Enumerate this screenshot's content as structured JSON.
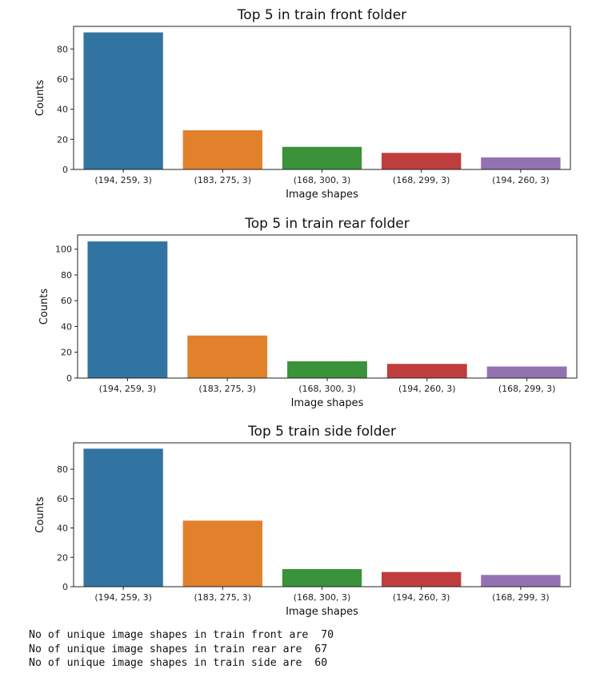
{
  "chart_data": [
    {
      "type": "bar",
      "title": "Top 5 in train front folder",
      "xlabel": "Image shapes",
      "ylabel": "Counts",
      "categories": [
        "(194, 259, 3)",
        "(183, 275, 3)",
        "(168, 300, 3)",
        "(168, 299, 3)",
        "(194, 260, 3)"
      ],
      "values": [
        91,
        26,
        15,
        11,
        8
      ],
      "colors": [
        "#3274a1",
        "#e1812c",
        "#3a923a",
        "#c03d3e",
        "#9372b2"
      ],
      "yticks": [
        0,
        20,
        40,
        60,
        80
      ],
      "ylim": [
        0,
        95
      ],
      "grid": false
    },
    {
      "type": "bar",
      "title": "Top 5 in train rear folder",
      "xlabel": "Image shapes",
      "ylabel": "Counts",
      "categories": [
        "(194, 259, 3)",
        "(183, 275, 3)",
        "(168, 300, 3)",
        "(194, 260, 3)",
        "(168, 299, 3)"
      ],
      "values": [
        106,
        33,
        13,
        11,
        9
      ],
      "colors": [
        "#3274a1",
        "#e1812c",
        "#3a923a",
        "#c03d3e",
        "#9372b2"
      ],
      "yticks": [
        0,
        20,
        40,
        60,
        80,
        100
      ],
      "ylim": [
        0,
        111
      ],
      "grid": false
    },
    {
      "type": "bar",
      "title": "Top 5 train side folder",
      "xlabel": "Image shapes",
      "ylabel": "Counts",
      "categories": [
        "(194, 259, 3)",
        "(183, 275, 3)",
        "(168, 300, 3)",
        "(194, 260, 3)",
        "(168, 299, 3)"
      ],
      "values": [
        94,
        45,
        12,
        10,
        8
      ],
      "colors": [
        "#3274a1",
        "#e1812c",
        "#3a923a",
        "#c03d3e",
        "#9372b2"
      ],
      "yticks": [
        0,
        20,
        40,
        60,
        80
      ],
      "ylim": [
        0,
        98
      ],
      "grid": false
    }
  ],
  "output_lines": [
    "No of unique image shapes in train front are  70",
    "No of unique image shapes in train rear are  67",
    "No of unique image shapes in train side are  60"
  ]
}
